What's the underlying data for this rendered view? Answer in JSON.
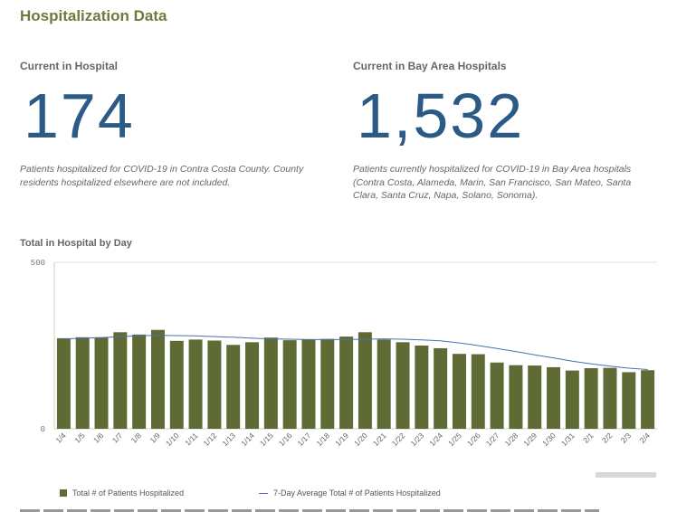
{
  "page_title": "Hospitalization Data",
  "kpis": {
    "county": {
      "label": "Current in Hospital",
      "value": "174",
      "note_line1": "Patients hospitalized for COVID-19 in Contra Costa County. County",
      "note_line2": "residents hospitalized elsewhere are not included."
    },
    "bay_area": {
      "label": "Current in Bay Area Hospitals",
      "value": "1,532",
      "note_line1": "Patients currently hospitalized for COVID-19 in Bay Area hospitals",
      "note_line2": "(Contra Costa, Alameda, Marin, San Francisco, San Mateo, Santa",
      "note_line3": "Clara, Santa Cruz, Napa, Solano, Sonoma)."
    }
  },
  "legend": {
    "bars": "Total # of Patients Hospitalized",
    "line": "7-Day Average Total # of Patients Hospitalized"
  },
  "colors": {
    "bar": "#5f6b34",
    "line": "#4a6fb0",
    "accent": "#2b5a86",
    "title": "#6e7a3c"
  },
  "chart_data": {
    "type": "bar",
    "title": "Total in Hospital by Day",
    "xlabel": "",
    "ylabel": "",
    "ylim": [
      0,
      500
    ],
    "yticks": [
      "0",
      "500"
    ],
    "categories": [
      "1/4",
      "1/5",
      "1/6",
      "1/7",
      "1/8",
      "1/9",
      "1/10",
      "1/11",
      "1/12",
      "1/13",
      "1/14",
      "1/15",
      "1/16",
      "1/17",
      "1/18",
      "1/19",
      "1/20",
      "1/21",
      "1/22",
      "1/23",
      "1/24",
      "1/25",
      "1/26",
      "1/27",
      "1/28",
      "1/29",
      "1/30",
      "1/31",
      "2/1",
      "2/2",
      "2/3",
      "2/4"
    ],
    "series": [
      {
        "name": "Total # of Patients Hospitalized",
        "type": "bar",
        "values": [
          272,
          275,
          275,
          290,
          283,
          297,
          264,
          268,
          265,
          252,
          260,
          274,
          266,
          268,
          270,
          277,
          290,
          268,
          260,
          250,
          242,
          225,
          224,
          199,
          191,
          190,
          185,
          175,
          182,
          183,
          170,
          176
        ]
      },
      {
        "name": "7-Day Average Total # of Patients Hospitalized",
        "type": "line",
        "values": [
          270,
          272,
          274,
          277,
          279,
          281,
          280,
          279,
          277,
          275,
          272,
          270,
          269,
          268,
          268,
          268,
          269,
          270,
          269,
          267,
          264,
          258,
          250,
          241,
          232,
          222,
          213,
          203,
          195,
          188,
          182,
          178
        ]
      }
    ]
  }
}
